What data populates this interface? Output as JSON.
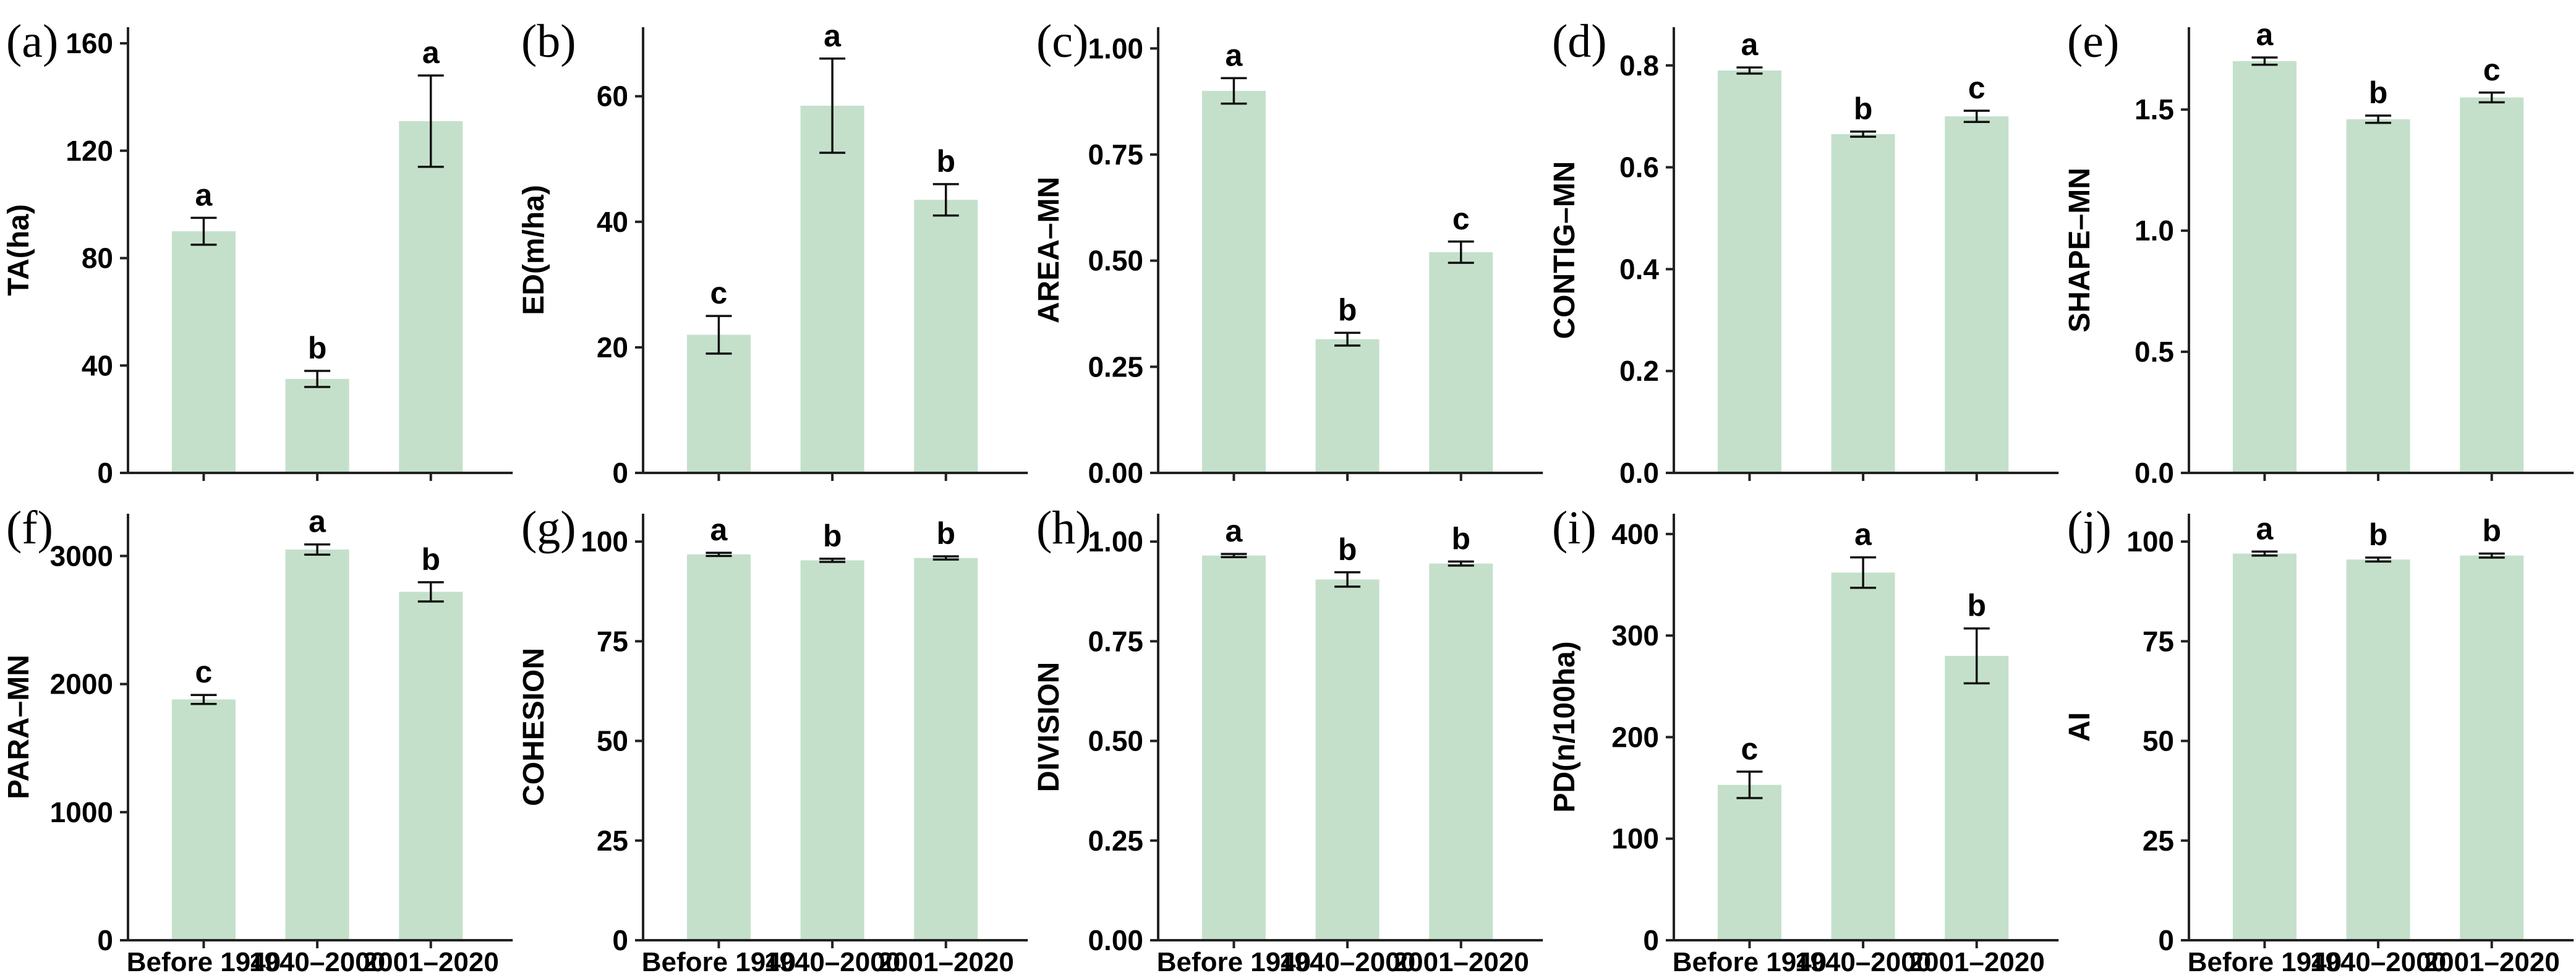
{
  "figure": {
    "background": "#ffffff",
    "bar_color": "#c4e0ca",
    "axis_color": "#222222",
    "error_color": "#111111",
    "text_color": "#000000",
    "grid": false,
    "legend": "none",
    "categories": [
      "Before 1940",
      "1940–2000",
      "2001–2020"
    ]
  },
  "chart_data": [
    {
      "type": "bar",
      "panel_label": "(a)",
      "ylabel": "TA(ha)",
      "categories": [
        "Before 1940",
        "1940–2000",
        "2001–2020"
      ],
      "values": [
        90,
        35,
        131
      ],
      "errors": [
        5,
        3,
        17
      ],
      "sig_letters": [
        "a",
        "b",
        "a"
      ],
      "ytick_values": [
        0,
        40,
        80,
        120,
        160
      ],
      "ytick_labels": [
        "0",
        "40",
        "80",
        "120",
        "160"
      ],
      "ylim": [
        0,
        166
      ],
      "x_labels_visible": false
    },
    {
      "type": "bar",
      "panel_label": "(b)",
      "ylabel": "ED(m/ha)",
      "categories": [
        "Before 1940",
        "1940–2000",
        "2001–2020"
      ],
      "values": [
        22,
        58.5,
        43.5
      ],
      "errors": [
        3,
        7.5,
        2.5
      ],
      "sig_letters": [
        "c",
        "a",
        "b"
      ],
      "ytick_values": [
        0,
        20,
        40,
        60
      ],
      "ytick_labels": [
        "0",
        "20",
        "40",
        "60"
      ],
      "ylim": [
        0,
        71
      ],
      "x_labels_visible": false
    },
    {
      "type": "bar",
      "panel_label": "(c)",
      "ylabel": "AREA–MN",
      "categories": [
        "Before 1940",
        "1940–2000",
        "2001–2020"
      ],
      "values": [
        0.9,
        0.315,
        0.52
      ],
      "errors": [
        0.03,
        0.015,
        0.025
      ],
      "sig_letters": [
        "a",
        "b",
        "c"
      ],
      "ytick_values": [
        0,
        0.25,
        0.5,
        0.75,
        1.0
      ],
      "ytick_labels": [
        "0.00",
        "0.25",
        "0.50",
        "0.75",
        "1.00"
      ],
      "ylim": [
        0,
        1.05
      ],
      "x_labels_visible": false
    },
    {
      "type": "bar",
      "panel_label": "(d)",
      "ylabel": "CONTIG–MN",
      "categories": [
        "Before 1940",
        "1940–2000",
        "2001–2020"
      ],
      "values": [
        0.79,
        0.665,
        0.7
      ],
      "errors": [
        0.006,
        0.005,
        0.011
      ],
      "sig_letters": [
        "a",
        "b",
        "c"
      ],
      "ytick_values": [
        0,
        0.2,
        0.4,
        0.6,
        0.8
      ],
      "ytick_labels": [
        "0.0",
        "0.2",
        "0.4",
        "0.6",
        "0.8"
      ],
      "ylim": [
        0,
        0.875
      ],
      "x_labels_visible": false
    },
    {
      "type": "bar",
      "panel_label": "(e)",
      "ylabel": "SHAPE–MN",
      "categories": [
        "Before 1940",
        "1940–2000",
        "2001–2020"
      ],
      "values": [
        1.7,
        1.46,
        1.55
      ],
      "errors": [
        0.015,
        0.015,
        0.02
      ],
      "sig_letters": [
        "a",
        "b",
        "c"
      ],
      "ytick_values": [
        0,
        0.5,
        1.0,
        1.5
      ],
      "ytick_labels": [
        "0.0",
        "0.5",
        "1.0",
        "1.5"
      ],
      "ylim": [
        0,
        1.84
      ],
      "x_labels_visible": false
    },
    {
      "type": "bar",
      "panel_label": "(f)",
      "ylabel": "PARA–MN",
      "categories": [
        "Before 1940",
        "1940–2000",
        "2001–2020"
      ],
      "values": [
        1880,
        3050,
        2720
      ],
      "errors": [
        35,
        40,
        75
      ],
      "sig_letters": [
        "c",
        "a",
        "b"
      ],
      "ytick_values": [
        0,
        1000,
        2000,
        3000
      ],
      "ytick_labels": [
        "0",
        "1000",
        "2000",
        "3000"
      ],
      "ylim": [
        0,
        3330
      ],
      "x_labels_visible": true
    },
    {
      "type": "bar",
      "panel_label": "(g)",
      "ylabel": "COHESION",
      "categories": [
        "Before 1940",
        "1940–2000",
        "2001–2020"
      ],
      "values": [
        96.8,
        95.3,
        95.9
      ],
      "errors": [
        0.4,
        0.4,
        0.4
      ],
      "sig_letters": [
        "a",
        "b",
        "b"
      ],
      "ytick_values": [
        0,
        25,
        50,
        75,
        100
      ],
      "ytick_labels": [
        "0",
        "25",
        "50",
        "75",
        "100"
      ],
      "ylim": [
        0,
        107
      ],
      "x_labels_visible": true
    },
    {
      "type": "bar",
      "panel_label": "(h)",
      "ylabel": "DIVISION",
      "categories": [
        "Before 1940",
        "1940–2000",
        "2001–2020"
      ],
      "values": [
        0.965,
        0.905,
        0.945
      ],
      "errors": [
        0.004,
        0.018,
        0.005
      ],
      "sig_letters": [
        "a",
        "b",
        "b"
      ],
      "ytick_values": [
        0,
        0.25,
        0.5,
        0.75,
        1.0
      ],
      "ytick_labels": [
        "0.00",
        "0.25",
        "0.50",
        "0.75",
        "1.00"
      ],
      "ylim": [
        0,
        1.07
      ],
      "x_labels_visible": true
    },
    {
      "type": "bar",
      "panel_label": "(i)",
      "ylabel": "PD(n/100ha)",
      "categories": [
        "Before 1940",
        "1940–2000",
        "2001–2020"
      ],
      "values": [
        153,
        362,
        280
      ],
      "errors": [
        13,
        15,
        27
      ],
      "sig_letters": [
        "c",
        "a",
        "b"
      ],
      "ytick_values": [
        0,
        100,
        200,
        300,
        400
      ],
      "ytick_labels": [
        "0",
        "100",
        "200",
        "300",
        "400"
      ],
      "ylim": [
        0,
        420
      ],
      "x_labels_visible": true
    },
    {
      "type": "bar",
      "panel_label": "(j)",
      "ylabel": "AI",
      "categories": [
        "Before 1940",
        "1940–2000",
        "2001–2020"
      ],
      "values": [
        97,
        95.5,
        96.5
      ],
      "errors": [
        0.5,
        0.5,
        0.5
      ],
      "sig_letters": [
        "a",
        "b",
        "b"
      ],
      "ytick_values": [
        0,
        25,
        50,
        75,
        100
      ],
      "ytick_labels": [
        "0",
        "25",
        "50",
        "75",
        "100"
      ],
      "ylim": [
        0,
        107
      ],
      "x_labels_visible": true
    }
  ]
}
